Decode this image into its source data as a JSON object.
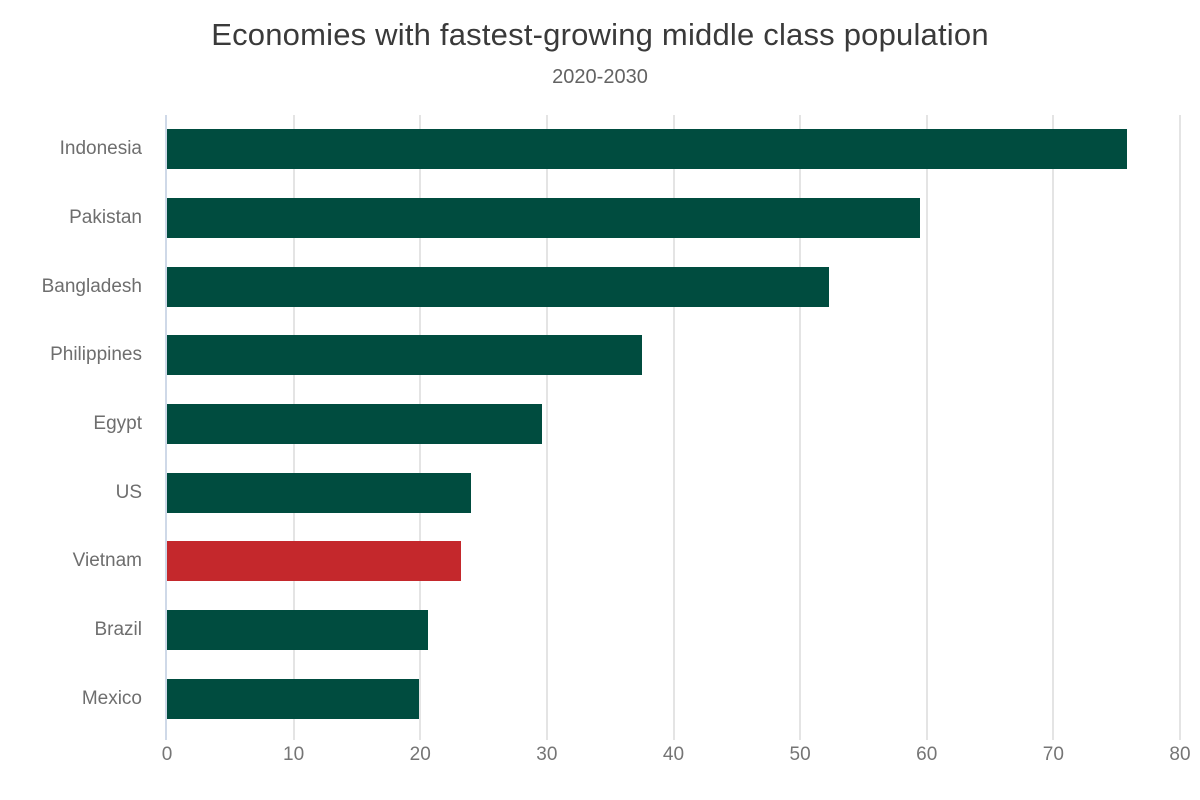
{
  "colors": {
    "bar": "#004c3f",
    "highlight": "#c4282c",
    "axis_line": "#cfd9e8",
    "gridline": "#e4e4e4",
    "title_text": "#3a3a3a",
    "subtitle_text": "#636363",
    "category_text": "#6e6e6e",
    "tick_text": "#757575",
    "background": "#ffffff"
  },
  "chart_data": {
    "type": "bar",
    "orientation": "horizontal",
    "title": "Economies with fastest-growing middle class population",
    "subtitle": "2020-2030",
    "categories": [
      "Indonesia",
      "Pakistan",
      "Bangladesh",
      "Philippines",
      "Egypt",
      "US",
      "Vietnam",
      "Brazil",
      "Mexico"
    ],
    "values": [
      75.8,
      59.5,
      52.3,
      37.5,
      29.6,
      24.0,
      23.2,
      20.6,
      19.9
    ],
    "highlighted_category": "Vietnam",
    "xlabel": "",
    "ylabel": "",
    "xlim": [
      0,
      80
    ],
    "xticks": [
      0,
      10,
      20,
      30,
      40,
      50,
      60,
      70,
      80
    ],
    "grid": true,
    "legend": false,
    "bar_color": "#004c3f",
    "highlight_color": "#c4282c"
  }
}
